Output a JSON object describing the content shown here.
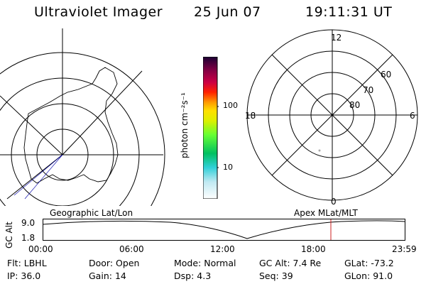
{
  "header": {
    "instrument": "Ultraviolet Imager",
    "date": "25 Jun 07",
    "time": "19:11:31 UT"
  },
  "colorbar": {
    "unit": "photon cm⁻²s⁻¹",
    "ticks": [
      "100",
      "10"
    ]
  },
  "polar": {
    "mlt_labels": {
      "top": "12",
      "left": "18",
      "right": "6",
      "bottom": "0"
    },
    "lat_labels": [
      "60",
      "70",
      "80"
    ]
  },
  "timeline": {
    "left_caption": "Geographic Lat/Lon",
    "right_caption": "Apex MLat/MLT",
    "y_axis_label": "GC Alt",
    "y_ticks": [
      "9.0",
      "1.8"
    ],
    "x_ticks": [
      "00:00",
      "06:00",
      "12:00",
      "18:00",
      "23:59"
    ]
  },
  "info": {
    "row1": [
      {
        "label": "Flt:",
        "value": "LBHL"
      },
      {
        "label": "Door:",
        "value": "Open"
      },
      {
        "label": "Mode:",
        "value": "Normal"
      },
      {
        "label": "GC Alt:",
        "value": "7.4 Re"
      },
      {
        "label": "GLat:",
        "value": "-73.2"
      }
    ],
    "row2": [
      {
        "label": "IP:",
        "value": "36.0"
      },
      {
        "label": "Gain:",
        "value": "14"
      },
      {
        "label": "Dsp:",
        "value": "4.3"
      },
      {
        "label": "Seq:",
        "value": "39"
      },
      {
        "label": "GLon:",
        "value": "91.0"
      }
    ]
  },
  "colors": {
    "marker": "#cc2222",
    "coast": "#000000",
    "track": "#0000aa"
  }
}
